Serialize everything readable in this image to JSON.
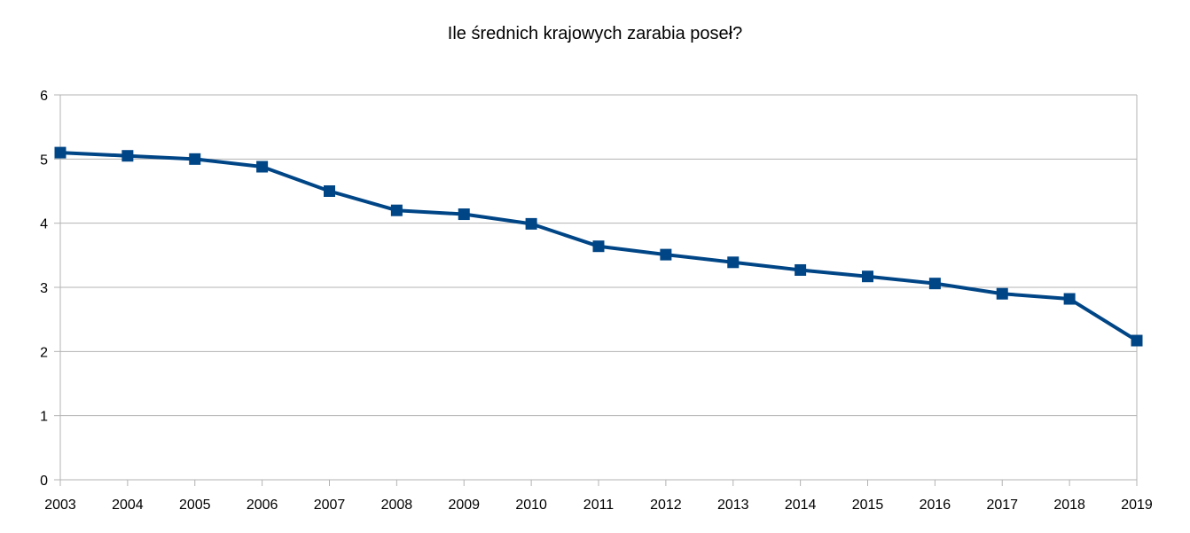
{
  "chart_data": {
    "type": "line",
    "title": "Ile średnich krajowych zarabia poseł?",
    "xlabel": "",
    "ylabel": "",
    "categories": [
      "2003",
      "2004",
      "2005",
      "2006",
      "2007",
      "2008",
      "2009",
      "2010",
      "2011",
      "2012",
      "2013",
      "2014",
      "2015",
      "2016",
      "2017",
      "2018",
      "2019"
    ],
    "series": [
      {
        "values": [
          5.1,
          5.05,
          5.0,
          4.88,
          4.5,
          4.2,
          4.14,
          3.99,
          3.64,
          3.51,
          3.39,
          3.27,
          3.17,
          3.06,
          2.9,
          2.82,
          2.17
        ],
        "color": "#004586",
        "marker": "square"
      }
    ],
    "ylim": [
      0,
      6
    ],
    "yticks": [
      "0",
      "1",
      "2",
      "3",
      "4",
      "5",
      "6"
    ],
    "grid": true,
    "legend": "none"
  }
}
